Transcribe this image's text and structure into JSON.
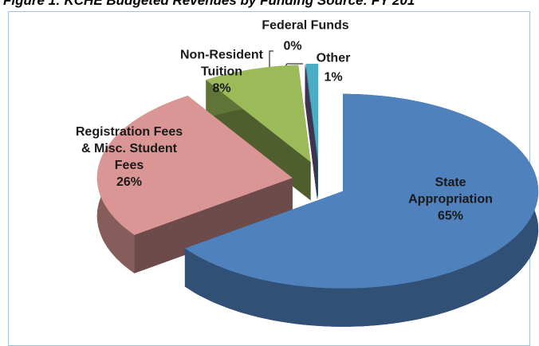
{
  "chart_data": {
    "type": "pie3d",
    "title": "Figure 1: KCHE Budgeted Revenues by Funding Source: FY 201",
    "categories": [
      "State Appropriation",
      "Registration Fees & Misc. Student Fees",
      "Non-Resident Tuition",
      "Federal Funds",
      "Other"
    ],
    "values": [
      65,
      26,
      8,
      0,
      1
    ],
    "value_labels": [
      "65%",
      "26%",
      "8%",
      "0%",
      "1%"
    ],
    "colors": [
      "#4f81bd",
      "#d99694",
      "#9bbb59",
      "#8064a2",
      "#4bacc6"
    ]
  }
}
